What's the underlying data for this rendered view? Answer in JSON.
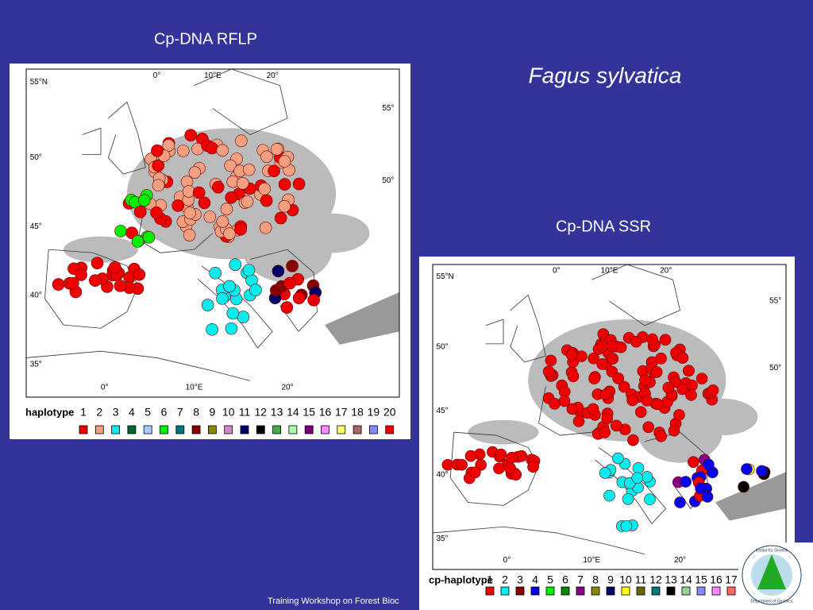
{
  "title": "Fagus sylvatica",
  "footer": "Training Workshop on Forest Bioc",
  "logo": {
    "top": "Institut für Genetik",
    "bottom": "Department of Genetics"
  },
  "maps": [
    {
      "caption": "Cp-DNA RFLP",
      "lat_labels": [
        "55°N",
        "50°",
        "45°",
        "40°",
        "35°"
      ],
      "right_lat_labels": [
        "55°",
        "50°"
      ],
      "top_lon_labels": [
        "0°",
        "10°E",
        "20°"
      ],
      "bottom_lon_labels": [
        "0°",
        "10°E",
        "20°"
      ],
      "legend_title": "haplotype",
      "legend_items": [
        "1",
        "2",
        "3",
        "4",
        "5",
        "6",
        "7",
        "8",
        "9",
        "10",
        "11",
        "12",
        "13",
        "14",
        "15",
        "16",
        "17",
        "18",
        "19",
        "20"
      ]
    },
    {
      "caption": "Cp-DNA SSR",
      "lat_labels": [
        "55°N",
        "50°",
        "45°",
        "40°",
        "35°"
      ],
      "right_lat_labels": [
        "55°",
        "50°"
      ],
      "top_lon_labels": [
        "0°",
        "10°E",
        "20°"
      ],
      "bottom_lon_labels": [
        "0°",
        "10°E",
        "20°"
      ],
      "legend_title": "cp-haplotype",
      "legend_items": [
        "1",
        "2",
        "3",
        "4",
        "5",
        "6",
        "7",
        "8",
        "9",
        "10",
        "11",
        "12",
        "13",
        "14",
        "15",
        "16",
        "17"
      ]
    }
  ]
}
